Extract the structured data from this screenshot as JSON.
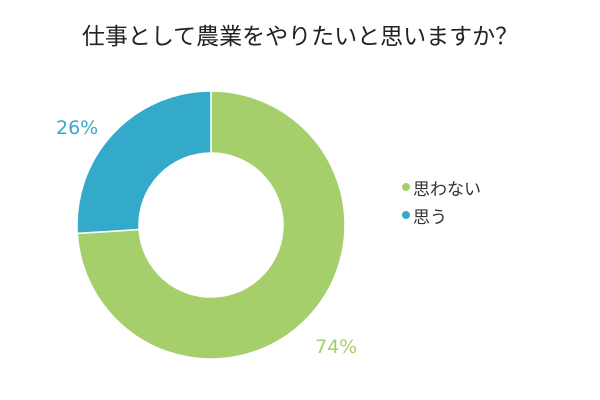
{
  "title": "仕事として農業をやりたいと思いますか？",
  "colors": {
    "no": "#a5cf6a",
    "yes": "#33aac9"
  },
  "legend": [
    {
      "label": "思わない",
      "color": "#a5cf6a"
    },
    {
      "label": "思う",
      "color": "#33aac9"
    }
  ],
  "labels": {
    "yes_pct": "26%",
    "no_pct": "74%"
  },
  "chart_data": {
    "type": "pie",
    "subtype": "donut",
    "title": "仕事として農業をやりたいと思いますか？",
    "categories": [
      "思わない",
      "思う"
    ],
    "values": [
      74,
      26
    ],
    "unit": "%",
    "colors": [
      "#a5cf6a",
      "#33aac9"
    ],
    "legend_position": "right",
    "data_labels": [
      "74%",
      "26%"
    ]
  }
}
